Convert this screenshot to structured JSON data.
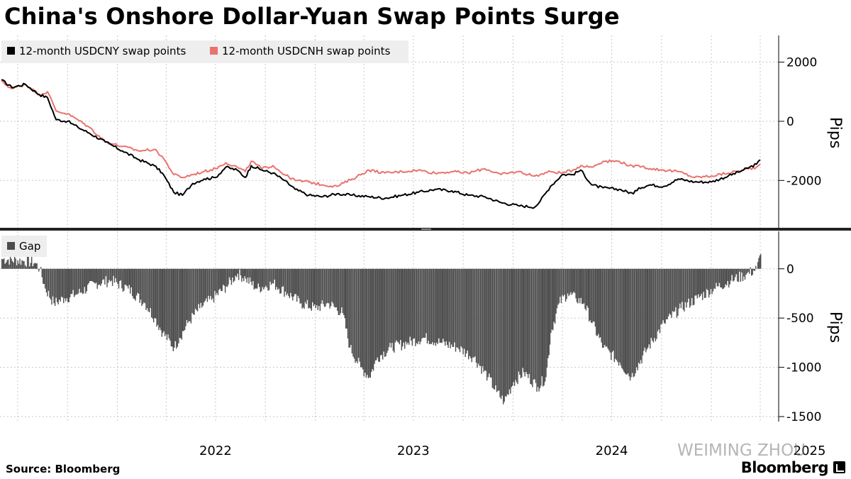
{
  "title": "China's Onshore Dollar-Yuan Swap Points Surge",
  "source": "Source: Bloomberg",
  "brand": "Bloomberg",
  "watermark": "WEIMING ZHOU",
  "colors": {
    "usdcny": "#000000",
    "usdcnh": "#e8736f",
    "gap": "#4d4d4d",
    "grid": "#c8c8c8",
    "separator": "#222222"
  },
  "chart_data": [
    {
      "type": "line",
      "y_axis_label": "Pips",
      "ylim": [
        -3600,
        2900
      ],
      "y_ticks": [
        2000,
        0,
        -2000
      ],
      "y_tick_labels": [
        "2000",
        "0",
        "-2000"
      ],
      "grid": true,
      "legend_placement": "top-left",
      "series": [
        {
          "name": "12-month USDCNY swap points",
          "points": [
            [
              "2021-06-01",
              1400
            ],
            [
              "2021-06-20",
              1150
            ],
            [
              "2021-07-15",
              1250
            ],
            [
              "2021-08-10",
              900
            ],
            [
              "2021-08-25",
              800
            ],
            [
              "2021-09-10",
              50
            ],
            [
              "2021-10-01",
              0
            ],
            [
              "2021-10-20",
              -200
            ],
            [
              "2021-11-10",
              -400
            ],
            [
              "2021-12-10",
              -700
            ],
            [
              "2022-01-10",
              -1000
            ],
            [
              "2022-02-10",
              -1300
            ],
            [
              "2022-03-10",
              -1500
            ],
            [
              "2022-03-25",
              -1750
            ],
            [
              "2022-04-15",
              -2400
            ],
            [
              "2022-05-01",
              -2500
            ],
            [
              "2022-05-20",
              -2100
            ],
            [
              "2022-06-10",
              -1950
            ],
            [
              "2022-07-01",
              -1900
            ],
            [
              "2022-07-20",
              -1550
            ],
            [
              "2022-08-10",
              -1650
            ],
            [
              "2022-08-25",
              -1900
            ],
            [
              "2022-09-05",
              -1500
            ],
            [
              "2022-09-25",
              -1650
            ],
            [
              "2022-10-15",
              -1750
            ],
            [
              "2022-11-05",
              -2000
            ],
            [
              "2022-11-25",
              -2300
            ],
            [
              "2022-12-20",
              -2500
            ],
            [
              "2023-01-15",
              -2550
            ],
            [
              "2023-02-10",
              -2450
            ],
            [
              "2023-03-10",
              -2500
            ],
            [
              "2023-04-10",
              -2550
            ],
            [
              "2023-05-10",
              -2600
            ],
            [
              "2023-06-10",
              -2500
            ],
            [
              "2023-07-10",
              -2400
            ],
            [
              "2023-08-10",
              -2300
            ],
            [
              "2023-09-10",
              -2350
            ],
            [
              "2023-10-10",
              -2500
            ],
            [
              "2023-11-10",
              -2550
            ],
            [
              "2023-12-10",
              -2750
            ],
            [
              "2024-01-10",
              -2850
            ],
            [
              "2024-02-10",
              -2900
            ],
            [
              "2024-02-20",
              -2700
            ],
            [
              "2024-03-10",
              -2200
            ],
            [
              "2024-04-01",
              -1800
            ],
            [
              "2024-04-20",
              -1800
            ],
            [
              "2024-05-05",
              -1650
            ],
            [
              "2024-05-25",
              -2150
            ],
            [
              "2024-06-15",
              -2250
            ],
            [
              "2024-07-15",
              -2300
            ],
            [
              "2024-08-10",
              -2450
            ],
            [
              "2024-08-20",
              -2250
            ],
            [
              "2024-09-10",
              -2150
            ],
            [
              "2024-10-05",
              -2200
            ],
            [
              "2024-11-01",
              -1950
            ],
            [
              "2024-12-01",
              -2050
            ],
            [
              "2025-01-01",
              -2050
            ],
            [
              "2025-02-01",
              -1850
            ],
            [
              "2025-03-01",
              -1650
            ],
            [
              "2025-03-25",
              -1450
            ],
            [
              "2025-04-01",
              -1300
            ]
          ]
        },
        {
          "name": "12-month USDCNH swap points",
          "points": [
            [
              "2021-06-01",
              1350
            ],
            [
              "2021-06-20",
              1100
            ],
            [
              "2021-07-15",
              1250
            ],
            [
              "2021-08-10",
              900
            ],
            [
              "2021-08-25",
              1000
            ],
            [
              "2021-09-10",
              350
            ],
            [
              "2021-10-01",
              250
            ],
            [
              "2021-10-20",
              50
            ],
            [
              "2021-11-10",
              -200
            ],
            [
              "2021-12-10",
              -700
            ],
            [
              "2022-01-10",
              -850
            ],
            [
              "2022-02-10",
              -1000
            ],
            [
              "2022-03-10",
              -950
            ],
            [
              "2022-03-25",
              -1200
            ],
            [
              "2022-04-15",
              -1800
            ],
            [
              "2022-05-01",
              -1900
            ],
            [
              "2022-05-20",
              -1800
            ],
            [
              "2022-06-10",
              -1700
            ],
            [
              "2022-07-01",
              -1600
            ],
            [
              "2022-07-20",
              -1400
            ],
            [
              "2022-08-10",
              -1550
            ],
            [
              "2022-08-25",
              -1700
            ],
            [
              "2022-09-05",
              -1350
            ],
            [
              "2022-09-25",
              -1600
            ],
            [
              "2022-10-15",
              -1500
            ],
            [
              "2022-11-05",
              -1800
            ],
            [
              "2022-11-25",
              -2000
            ],
            [
              "2022-12-20",
              -2050
            ],
            [
              "2023-01-15",
              -2150
            ],
            [
              "2023-02-10",
              -2200
            ],
            [
              "2023-03-10",
              -1950
            ],
            [
              "2023-04-10",
              -1650
            ],
            [
              "2023-05-10",
              -1750
            ],
            [
              "2023-06-10",
              -1700
            ],
            [
              "2023-07-10",
              -1650
            ],
            [
              "2023-08-10",
              -1750
            ],
            [
              "2023-09-10",
              -1700
            ],
            [
              "2023-10-10",
              -1750
            ],
            [
              "2023-11-10",
              -1600
            ],
            [
              "2023-12-10",
              -1800
            ],
            [
              "2024-01-10",
              -1700
            ],
            [
              "2024-02-10",
              -1850
            ],
            [
              "2024-02-20",
              -1800
            ],
            [
              "2024-03-10",
              -1700
            ],
            [
              "2024-04-01",
              -1750
            ],
            [
              "2024-04-20",
              -1650
            ],
            [
              "2024-05-05",
              -1500
            ],
            [
              "2024-05-25",
              -1550
            ],
            [
              "2024-06-15",
              -1350
            ],
            [
              "2024-07-15",
              -1350
            ],
            [
              "2024-08-10",
              -1550
            ],
            [
              "2024-08-20",
              -1500
            ],
            [
              "2024-09-10",
              -1600
            ],
            [
              "2024-10-05",
              -1650
            ],
            [
              "2024-11-01",
              -1700
            ],
            [
              "2024-12-01",
              -1900
            ],
            [
              "2025-01-01",
              -1850
            ],
            [
              "2025-02-01",
              -1750
            ],
            [
              "2025-03-01",
              -1650
            ],
            [
              "2025-03-25",
              -1550
            ],
            [
              "2025-04-01",
              -1450
            ]
          ]
        }
      ]
    },
    {
      "type": "bar",
      "y_axis_label": "Pips",
      "ylim": [
        -1550,
        380
      ],
      "y_ticks": [
        0,
        -500,
        -1000,
        -1500
      ],
      "y_tick_labels": [
        "0",
        "-500",
        "-1000",
        "-1500"
      ],
      "grid": true,
      "legend_placement": "top-left",
      "series": [
        {
          "name": "Gap",
          "points": [
            [
              "2021-06-01",
              100
            ],
            [
              "2021-07-10",
              80
            ],
            [
              "2021-08-01",
              60
            ],
            [
              "2021-08-10",
              0
            ],
            [
              "2021-08-20",
              -200
            ],
            [
              "2021-09-05",
              -350
            ],
            [
              "2021-09-25",
              -300
            ],
            [
              "2021-10-20",
              -250
            ],
            [
              "2021-11-20",
              -150
            ],
            [
              "2021-12-20",
              -120
            ],
            [
              "2022-01-20",
              -200
            ],
            [
              "2022-02-20",
              -350
            ],
            [
              "2022-03-10",
              -500
            ],
            [
              "2022-03-25",
              -650
            ],
            [
              "2022-04-15",
              -800
            ],
            [
              "2022-04-25",
              -700
            ],
            [
              "2022-05-10",
              -550
            ],
            [
              "2022-06-01",
              -400
            ],
            [
              "2022-06-25",
              -300
            ],
            [
              "2022-07-20",
              -180
            ],
            [
              "2022-08-10",
              -50
            ],
            [
              "2022-08-25",
              -100
            ],
            [
              "2022-09-15",
              -200
            ],
            [
              "2022-10-15",
              -150
            ],
            [
              "2022-11-10",
              -250
            ],
            [
              "2022-12-05",
              -350
            ],
            [
              "2023-01-01",
              -400
            ],
            [
              "2023-01-25",
              -350
            ],
            [
              "2023-02-20",
              -450
            ],
            [
              "2023-03-05",
              -800
            ],
            [
              "2023-03-25",
              -1000
            ],
            [
              "2023-04-10",
              -1100
            ],
            [
              "2023-04-25",
              -900
            ],
            [
              "2023-05-20",
              -800
            ],
            [
              "2023-06-20",
              -750
            ],
            [
              "2023-07-20",
              -700
            ],
            [
              "2023-08-20",
              -750
            ],
            [
              "2023-09-20",
              -800
            ],
            [
              "2023-10-20",
              -900
            ],
            [
              "2023-11-15",
              -1100
            ],
            [
              "2023-12-01",
              -1250
            ],
            [
              "2023-12-15",
              -1350
            ],
            [
              "2024-01-01",
              -1150
            ],
            [
              "2024-01-20",
              -1050
            ],
            [
              "2024-02-15",
              -1200
            ],
            [
              "2024-03-01",
              -1100
            ],
            [
              "2024-03-10",
              -650
            ],
            [
              "2024-03-25",
              -350
            ],
            [
              "2024-04-10",
              -250
            ],
            [
              "2024-04-25",
              -300
            ],
            [
              "2024-05-10",
              -350
            ],
            [
              "2024-05-25",
              -550
            ],
            [
              "2024-06-15",
              -800
            ],
            [
              "2024-07-15",
              -950
            ],
            [
              "2024-08-05",
              -1100
            ],
            [
              "2024-08-15",
              -1000
            ],
            [
              "2024-09-05",
              -800
            ],
            [
              "2024-10-05",
              -550
            ],
            [
              "2024-11-05",
              -400
            ],
            [
              "2024-12-05",
              -300
            ],
            [
              "2025-01-05",
              -200
            ],
            [
              "2025-02-05",
              -120
            ],
            [
              "2025-03-05",
              -60
            ],
            [
              "2025-03-25",
              0
            ],
            [
              "2025-04-01",
              150
            ]
          ]
        }
      ]
    },
    {
      "type": "axis",
      "x_tick_labels": [
        {
          "date": "2022-07-01",
          "label": "2022"
        },
        {
          "date": "2023-07-01",
          "label": "2023"
        },
        {
          "date": "2024-07-01",
          "label": "2024"
        },
        {
          "date": "2025-07-01",
          "label": "2025"
        }
      ]
    }
  ]
}
